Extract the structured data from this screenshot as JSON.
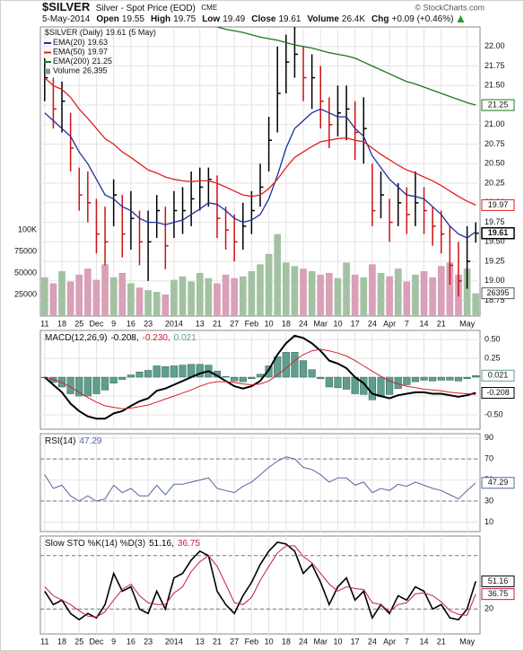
{
  "chart_data": [
    {
      "type": "ohlc",
      "title": "$SILVER",
      "subtitle": "Silver - Spot Price (EOD)",
      "exchange": "CME",
      "source": "© StockCharts.com",
      "quote": {
        "date": "5-May-2014",
        "change_color": "#2a9a2a",
        "fields": [
          {
            "label": "Open",
            "value": 19.55
          },
          {
            "label": "High",
            "value": 19.75
          },
          {
            "label": "Low",
            "value": 19.49
          },
          {
            "label": "Close",
            "value": 19.61
          },
          {
            "label": "Volume",
            "value": "26.4K"
          },
          {
            "label": "Chg",
            "value": "+0.09 (+0.46%)"
          }
        ]
      },
      "legend_name": "$SILVER (Daily)",
      "legend_date": "(5 May)",
      "categories": [
        "11",
        null,
        "18",
        null,
        "25",
        null,
        "Dec",
        null,
        "9",
        null,
        "16",
        null,
        "23",
        null,
        null,
        "2014",
        null,
        null,
        "13",
        null,
        "21",
        null,
        "27",
        null,
        "Feb",
        null,
        "10",
        null,
        "18",
        null,
        "24",
        null,
        "Mar",
        null,
        "10",
        null,
        "17",
        null,
        "24",
        null,
        "Apr",
        null,
        "7",
        null,
        "14",
        null,
        "21",
        null,
        null,
        "May",
        null
      ],
      "high": [
        21.85,
        21.6,
        21.55,
        21.15,
        20.45,
        20.4,
        20.05,
        19.95,
        20.3,
        20.1,
        20.15,
        19.9,
        19.9,
        20.1,
        19.95,
        20.15,
        20.2,
        20.4,
        20.45,
        20.45,
        20.35,
        19.95,
        19.85,
        20.0,
        20.15,
        20.5,
        21.1,
        22.0,
        22.15,
        22.25,
        22.0,
        21.9,
        21.75,
        21.35,
        21.5,
        21.5,
        21.3,
        21.35,
        20.5,
        20.4,
        20.05,
        20.25,
        20.2,
        20.4,
        20.2,
        19.95,
        19.9,
        19.7,
        19.5,
        19.7,
        19.75
      ],
      "low": [
        21.3,
        20.95,
        20.9,
        20.4,
        19.9,
        19.75,
        19.35,
        19.2,
        19.7,
        19.3,
        19.4,
        19.2,
        19.0,
        19.55,
        19.15,
        19.55,
        19.6,
        19.7,
        19.9,
        19.95,
        19.55,
        19.4,
        19.25,
        19.4,
        19.6,
        19.95,
        20.4,
        20.9,
        21.4,
        21.6,
        21.3,
        21.2,
        20.95,
        20.7,
        20.85,
        20.8,
        20.55,
        20.5,
        19.7,
        19.8,
        19.5,
        19.7,
        19.6,
        19.7,
        19.6,
        19.45,
        19.35,
        18.95,
        18.8,
        18.9,
        19.49
      ],
      "close": [
        21.6,
        21.2,
        21.3,
        20.7,
        20.1,
        20.0,
        19.6,
        19.5,
        20.1,
        19.6,
        19.8,
        19.5,
        19.5,
        19.9,
        19.45,
        19.9,
        19.9,
        20.05,
        20.2,
        20.3,
        19.8,
        19.65,
        19.5,
        19.7,
        19.9,
        20.2,
        20.8,
        21.4,
        21.8,
        21.9,
        21.6,
        21.6,
        21.3,
        21.0,
        21.15,
        21.2,
        20.9,
        20.95,
        19.9,
        20.1,
        19.75,
        20.0,
        19.85,
        20.0,
        19.9,
        19.7,
        19.6,
        19.2,
        19.0,
        19.25,
        19.61
      ],
      "up_color": "#000000",
      "down_color": "#cc1111",
      "close_tag": true,
      "series": [
        {
          "name": "EMA(20)",
          "color": "#1f2f9f",
          "tag": false,
          "values": [
            21.15,
            21.05,
            20.95,
            20.85,
            20.65,
            20.5,
            20.3,
            20.1,
            20.05,
            19.95,
            19.9,
            19.8,
            19.75,
            19.75,
            19.72,
            19.75,
            19.78,
            19.85,
            19.92,
            20.0,
            19.98,
            19.9,
            19.8,
            19.75,
            19.78,
            19.85,
            20.05,
            20.35,
            20.7,
            20.95,
            21.05,
            21.15,
            21.2,
            21.15,
            21.1,
            21.1,
            20.95,
            20.85,
            20.6,
            20.45,
            20.3,
            20.2,
            20.1,
            20.08,
            20.05,
            19.95,
            19.85,
            19.7,
            19.6,
            19.55,
            19.63
          ]
        },
        {
          "name": "EMA(50)",
          "color": "#e02020",
          "tag": true,
          "values": [
            21.6,
            21.5,
            21.45,
            21.35,
            21.2,
            21.08,
            20.95,
            20.82,
            20.75,
            20.65,
            20.58,
            20.5,
            20.42,
            20.38,
            20.33,
            20.3,
            20.28,
            20.27,
            20.28,
            20.28,
            20.25,
            20.2,
            20.15,
            20.1,
            20.08,
            20.1,
            20.18,
            20.3,
            20.45,
            20.58,
            20.65,
            20.72,
            20.78,
            20.8,
            20.82,
            20.83,
            20.8,
            20.78,
            20.7,
            20.62,
            20.55,
            20.48,
            20.42,
            20.38,
            20.33,
            20.28,
            20.22,
            20.15,
            20.08,
            20.02,
            19.97
          ]
        },
        {
          "name": "EMA(200)",
          "color": "#1a7a1a",
          "tag": true,
          "values": [
            null,
            null,
            null,
            null,
            null,
            null,
            null,
            null,
            null,
            null,
            null,
            null,
            null,
            null,
            null,
            null,
            null,
            null,
            null,
            null,
            22.25,
            22.22,
            22.2,
            22.18,
            22.15,
            22.12,
            22.1,
            22.08,
            22.05,
            22.02,
            22.0,
            21.98,
            21.95,
            21.92,
            21.9,
            21.88,
            21.85,
            21.8,
            21.75,
            21.7,
            21.65,
            21.6,
            21.55,
            21.52,
            21.48,
            21.44,
            21.4,
            21.36,
            21.32,
            21.28,
            21.25
          ]
        },
        {
          "name": "Volume",
          "type": "bar",
          "axis": "y2",
          "color": "#7f9f7f",
          "up_color": "#a3c2a3",
          "down_color": "#d9a0b8",
          "tag": true,
          "legend_value": "26,395",
          "values": [
            45000,
            38000,
            52000,
            40000,
            48000,
            55000,
            42000,
            60000,
            45000,
            50000,
            38000,
            33000,
            30000,
            28000,
            25000,
            42000,
            46000,
            40000,
            50000,
            44000,
            38000,
            48000,
            44000,
            46000,
            52000,
            60000,
            72000,
            95000,
            62000,
            58000,
            55000,
            52000,
            48000,
            50000,
            44000,
            62000,
            48000,
            45000,
            60000,
            50000,
            46000,
            55000,
            40000,
            48000,
            52000,
            45000,
            58000,
            62000,
            48000,
            55000,
            26395
          ]
        }
      ],
      "ylim": [
        18.55,
        22.25
      ],
      "yticks": [
        18.75,
        {
          "value": 19,
          "label": "19.00"
        },
        19.25,
        {
          "value": 19.5,
          "label": "19.50"
        },
        19.75,
        {
          "value": 20,
          "label": "20.00"
        },
        20.25,
        {
          "value": 20.5,
          "label": "20.50"
        },
        20.75,
        {
          "value": 21,
          "label": "21.00"
        },
        21.25,
        {
          "value": 21.5,
          "label": "21.50"
        },
        21.75,
        {
          "value": 22,
          "label": "22.00"
        }
      ],
      "y2lim": [
        0,
        335000
      ],
      "y2ticks": [
        25000,
        50000,
        75000,
        {
          "value": 100000,
          "label": "100K"
        }
      ],
      "grid": true
    },
    {
      "type": "line",
      "title": "MACD(12,26,9)",
      "value_separator": ",",
      "series": [
        {
          "color": "#000000",
          "width": 2,
          "tag": true,
          "values": [
            0.0,
            -0.1,
            -0.2,
            -0.35,
            -0.45,
            -0.52,
            -0.55,
            -0.55,
            -0.48,
            -0.45,
            -0.38,
            -0.32,
            -0.28,
            -0.18,
            -0.15,
            -0.1,
            -0.05,
            0.0,
            0.05,
            0.08,
            0.02,
            -0.05,
            -0.12,
            -0.15,
            -0.12,
            -0.05,
            0.1,
            0.3,
            0.45,
            0.55,
            0.52,
            0.45,
            0.35,
            0.22,
            0.18,
            0.12,
            0.0,
            -0.08,
            -0.22,
            -0.25,
            -0.28,
            -0.24,
            -0.22,
            -0.2,
            -0.2,
            -0.22,
            -0.22,
            -0.24,
            -0.26,
            -0.24,
            -0.208
          ]
        },
        {
          "color": "#d02030",
          "width": 1,
          "tag": false,
          "last_label": "-0.230",
          "values": [
            0.0,
            -0.03,
            -0.07,
            -0.13,
            -0.2,
            -0.27,
            -0.33,
            -0.38,
            -0.4,
            -0.42,
            -0.41,
            -0.39,
            -0.37,
            -0.33,
            -0.29,
            -0.25,
            -0.21,
            -0.17,
            -0.12,
            -0.08,
            -0.06,
            -0.06,
            -0.07,
            -0.09,
            -0.1,
            -0.09,
            -0.05,
            0.03,
            0.12,
            0.22,
            0.3,
            0.35,
            0.37,
            0.35,
            0.32,
            0.28,
            0.22,
            0.15,
            0.08,
            0.01,
            -0.05,
            -0.09,
            -0.12,
            -0.14,
            -0.16,
            -0.17,
            -0.18,
            -0.2,
            -0.21,
            -0.22,
            -0.23
          ]
        },
        {
          "type": "bar",
          "color": "#5f9f8f",
          "tag": true,
          "values": [
            0.0,
            -0.07,
            -0.13,
            -0.22,
            -0.25,
            -0.25,
            -0.22,
            -0.17,
            -0.08,
            -0.03,
            0.03,
            0.07,
            0.09,
            0.15,
            0.14,
            0.15,
            0.16,
            0.17,
            0.17,
            0.16,
            0.08,
            0.01,
            -0.05,
            -0.06,
            -0.02,
            0.04,
            0.15,
            0.27,
            0.33,
            0.33,
            0.22,
            0.1,
            -0.02,
            -0.13,
            -0.14,
            -0.16,
            -0.22,
            -0.23,
            -0.3,
            -0.26,
            -0.23,
            -0.15,
            -0.1,
            -0.06,
            -0.04,
            -0.05,
            -0.04,
            -0.04,
            -0.05,
            -0.02,
            0.021
          ]
        }
      ],
      "ylim": [
        -0.69,
        0.62
      ],
      "yticks": [
        {
          "value": 0.5,
          "label": "0.50"
        },
        0.25,
        -0.25,
        {
          "value": -0.5,
          "label": "-0.50"
        }
      ],
      "grid": true
    },
    {
      "type": "line",
      "title": "RSI(14)",
      "series": [
        {
          "color": "#5566a0",
          "width": 1,
          "tag": true,
          "values": [
            55,
            42,
            45,
            35,
            30,
            35,
            30,
            32,
            45,
            38,
            42,
            35,
            35,
            45,
            36,
            46,
            46,
            48,
            50,
            52,
            42,
            40,
            38,
            44,
            48,
            55,
            62,
            68,
            72,
            70,
            62,
            60,
            55,
            48,
            52,
            52,
            45,
            48,
            38,
            42,
            40,
            46,
            44,
            48,
            45,
            42,
            40,
            36,
            32,
            40,
            47.29
          ]
        }
      ],
      "ylim": [
        1,
        94
      ],
      "yticks": [
        90,
        70,
        50,
        30,
        10
      ],
      "ref_lines": [
        70,
        30
      ],
      "grid": true
    },
    {
      "type": "line",
      "title": "Slow STO %K(14) %D(3)",
      "value_separator": ",",
      "series": [
        {
          "color": "#000000",
          "width": 1.6,
          "tag": true,
          "values": [
            40,
            25,
            30,
            15,
            8,
            15,
            10,
            25,
            60,
            40,
            45,
            20,
            15,
            40,
            20,
            55,
            60,
            75,
            85,
            80,
            40,
            25,
            15,
            35,
            50,
            70,
            85,
            95,
            93,
            85,
            60,
            70,
            50,
            25,
            45,
            55,
            30,
            40,
            10,
            25,
            15,
            35,
            30,
            45,
            40,
            20,
            25,
            10,
            8,
            20,
            51.16
          ]
        },
        {
          "color": "#c02040",
          "width": 1,
          "tag": true,
          "values": [
            45,
            35,
            30,
            25,
            18,
            12,
            11,
            17,
            30,
            42,
            48,
            35,
            27,
            25,
            25,
            38,
            45,
            62,
            73,
            80,
            68,
            48,
            27,
            25,
            33,
            52,
            68,
            83,
            91,
            91,
            79,
            72,
            60,
            48,
            40,
            45,
            43,
            42,
            27,
            25,
            17,
            25,
            27,
            37,
            38,
            35,
            28,
            18,
            14,
            13,
            36.75
          ]
        }
      ],
      "ylim": [
        -8,
        102
      ],
      "yticks": [
        20
      ],
      "ref_lines": [
        20,
        80
      ],
      "grid": true
    }
  ]
}
